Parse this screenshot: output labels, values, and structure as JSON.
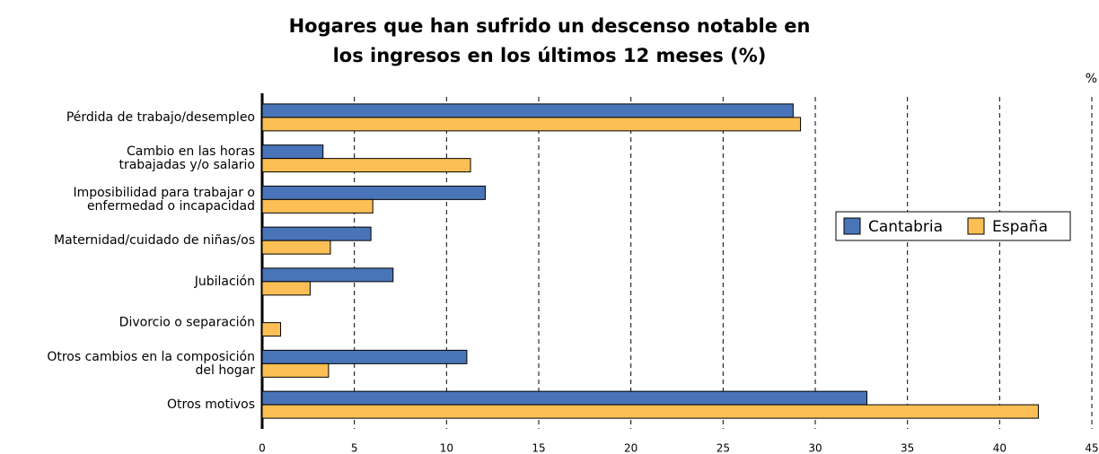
{
  "chart_data": {
    "type": "hbar",
    "title": "Hogares que han sufrido un descenso notable en\nlos ingresos en los últimos 12 meses (%)",
    "x_label": "%",
    "categories": [
      "Pérdida de trabajo/desempleo",
      "Cambio en las horas\ntrabajadas y/o salario",
      "Imposibilidad para trabajar o\nenfermedad o incapacidad",
      "Maternidad/cuidado de niñas/os",
      "Jubilación",
      "Divorcio o separación",
      "Otros cambios en la composición\ndel hogar",
      "Otros motivos"
    ],
    "series": [
      {
        "name": "Cantabria",
        "color": "#4a74b8",
        "values": [
          28.8,
          3.3,
          12.1,
          5.9,
          7.1,
          0,
          11.1,
          32.8
        ]
      },
      {
        "name": "España",
        "color": "#fbbf55",
        "values": [
          29.2,
          11.3,
          6.0,
          3.7,
          2.6,
          1.0,
          3.6,
          42.1
        ]
      }
    ],
    "xlim": [
      0,
      45
    ],
    "xticks": [
      0,
      5,
      10,
      15,
      20,
      25,
      30,
      35,
      40,
      45
    ],
    "grid": true,
    "legend": "right"
  }
}
